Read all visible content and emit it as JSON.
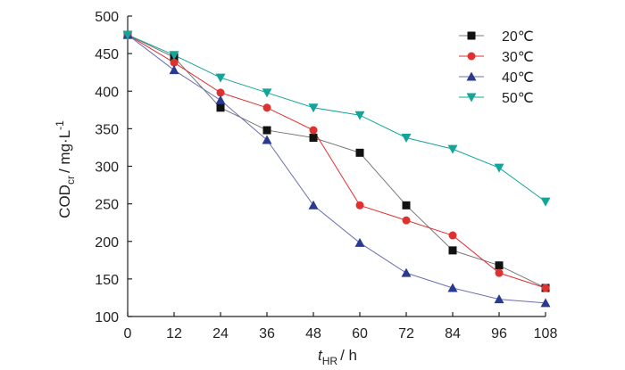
{
  "chart_data": {
    "type": "line",
    "title": "",
    "xlabel": {
      "main": "t",
      "sub": "HR",
      "unit": "/ h"
    },
    "ylabel": {
      "main": "COD",
      "sub": "cr",
      "unit": "/ mg·L",
      "sup": "-1"
    },
    "x": [
      0,
      12,
      24,
      36,
      48,
      60,
      72,
      84,
      96,
      108
    ],
    "xlim": [
      0,
      108
    ],
    "ylim": [
      100,
      500
    ],
    "xticks": [
      "0",
      "12",
      "24",
      "36",
      "48",
      "60",
      "72",
      "84",
      "96",
      "108"
    ],
    "yticks": [
      "100",
      "150",
      "200",
      "250",
      "300",
      "350",
      "400",
      "450",
      "500"
    ],
    "grid": false,
    "legend_position": "top-right",
    "series": [
      {
        "name": "20℃",
        "marker": "square",
        "marker_color": "#111111",
        "line_color": "#777777",
        "values": [
          475,
          445,
          378,
          348,
          338,
          318,
          248,
          188,
          168,
          138
        ]
      },
      {
        "name": "30℃",
        "marker": "circle",
        "marker_color": "#e03131",
        "line_color": "#e03131",
        "values": [
          475,
          438,
          398,
          378,
          348,
          248,
          228,
          208,
          158,
          138
        ]
      },
      {
        "name": "40℃",
        "marker": "triangle-up",
        "marker_color": "#2a3a8f",
        "line_color": "#6a6fb0",
        "values": [
          475,
          428,
          388,
          335,
          248,
          198,
          158,
          138,
          123,
          118
        ]
      },
      {
        "name": "50℃",
        "marker": "triangle-down",
        "marker_color": "#13a59a",
        "line_color": "#13a59a",
        "values": [
          475,
          448,
          418,
          398,
          378,
          368,
          338,
          323,
          298,
          253
        ]
      }
    ]
  }
}
